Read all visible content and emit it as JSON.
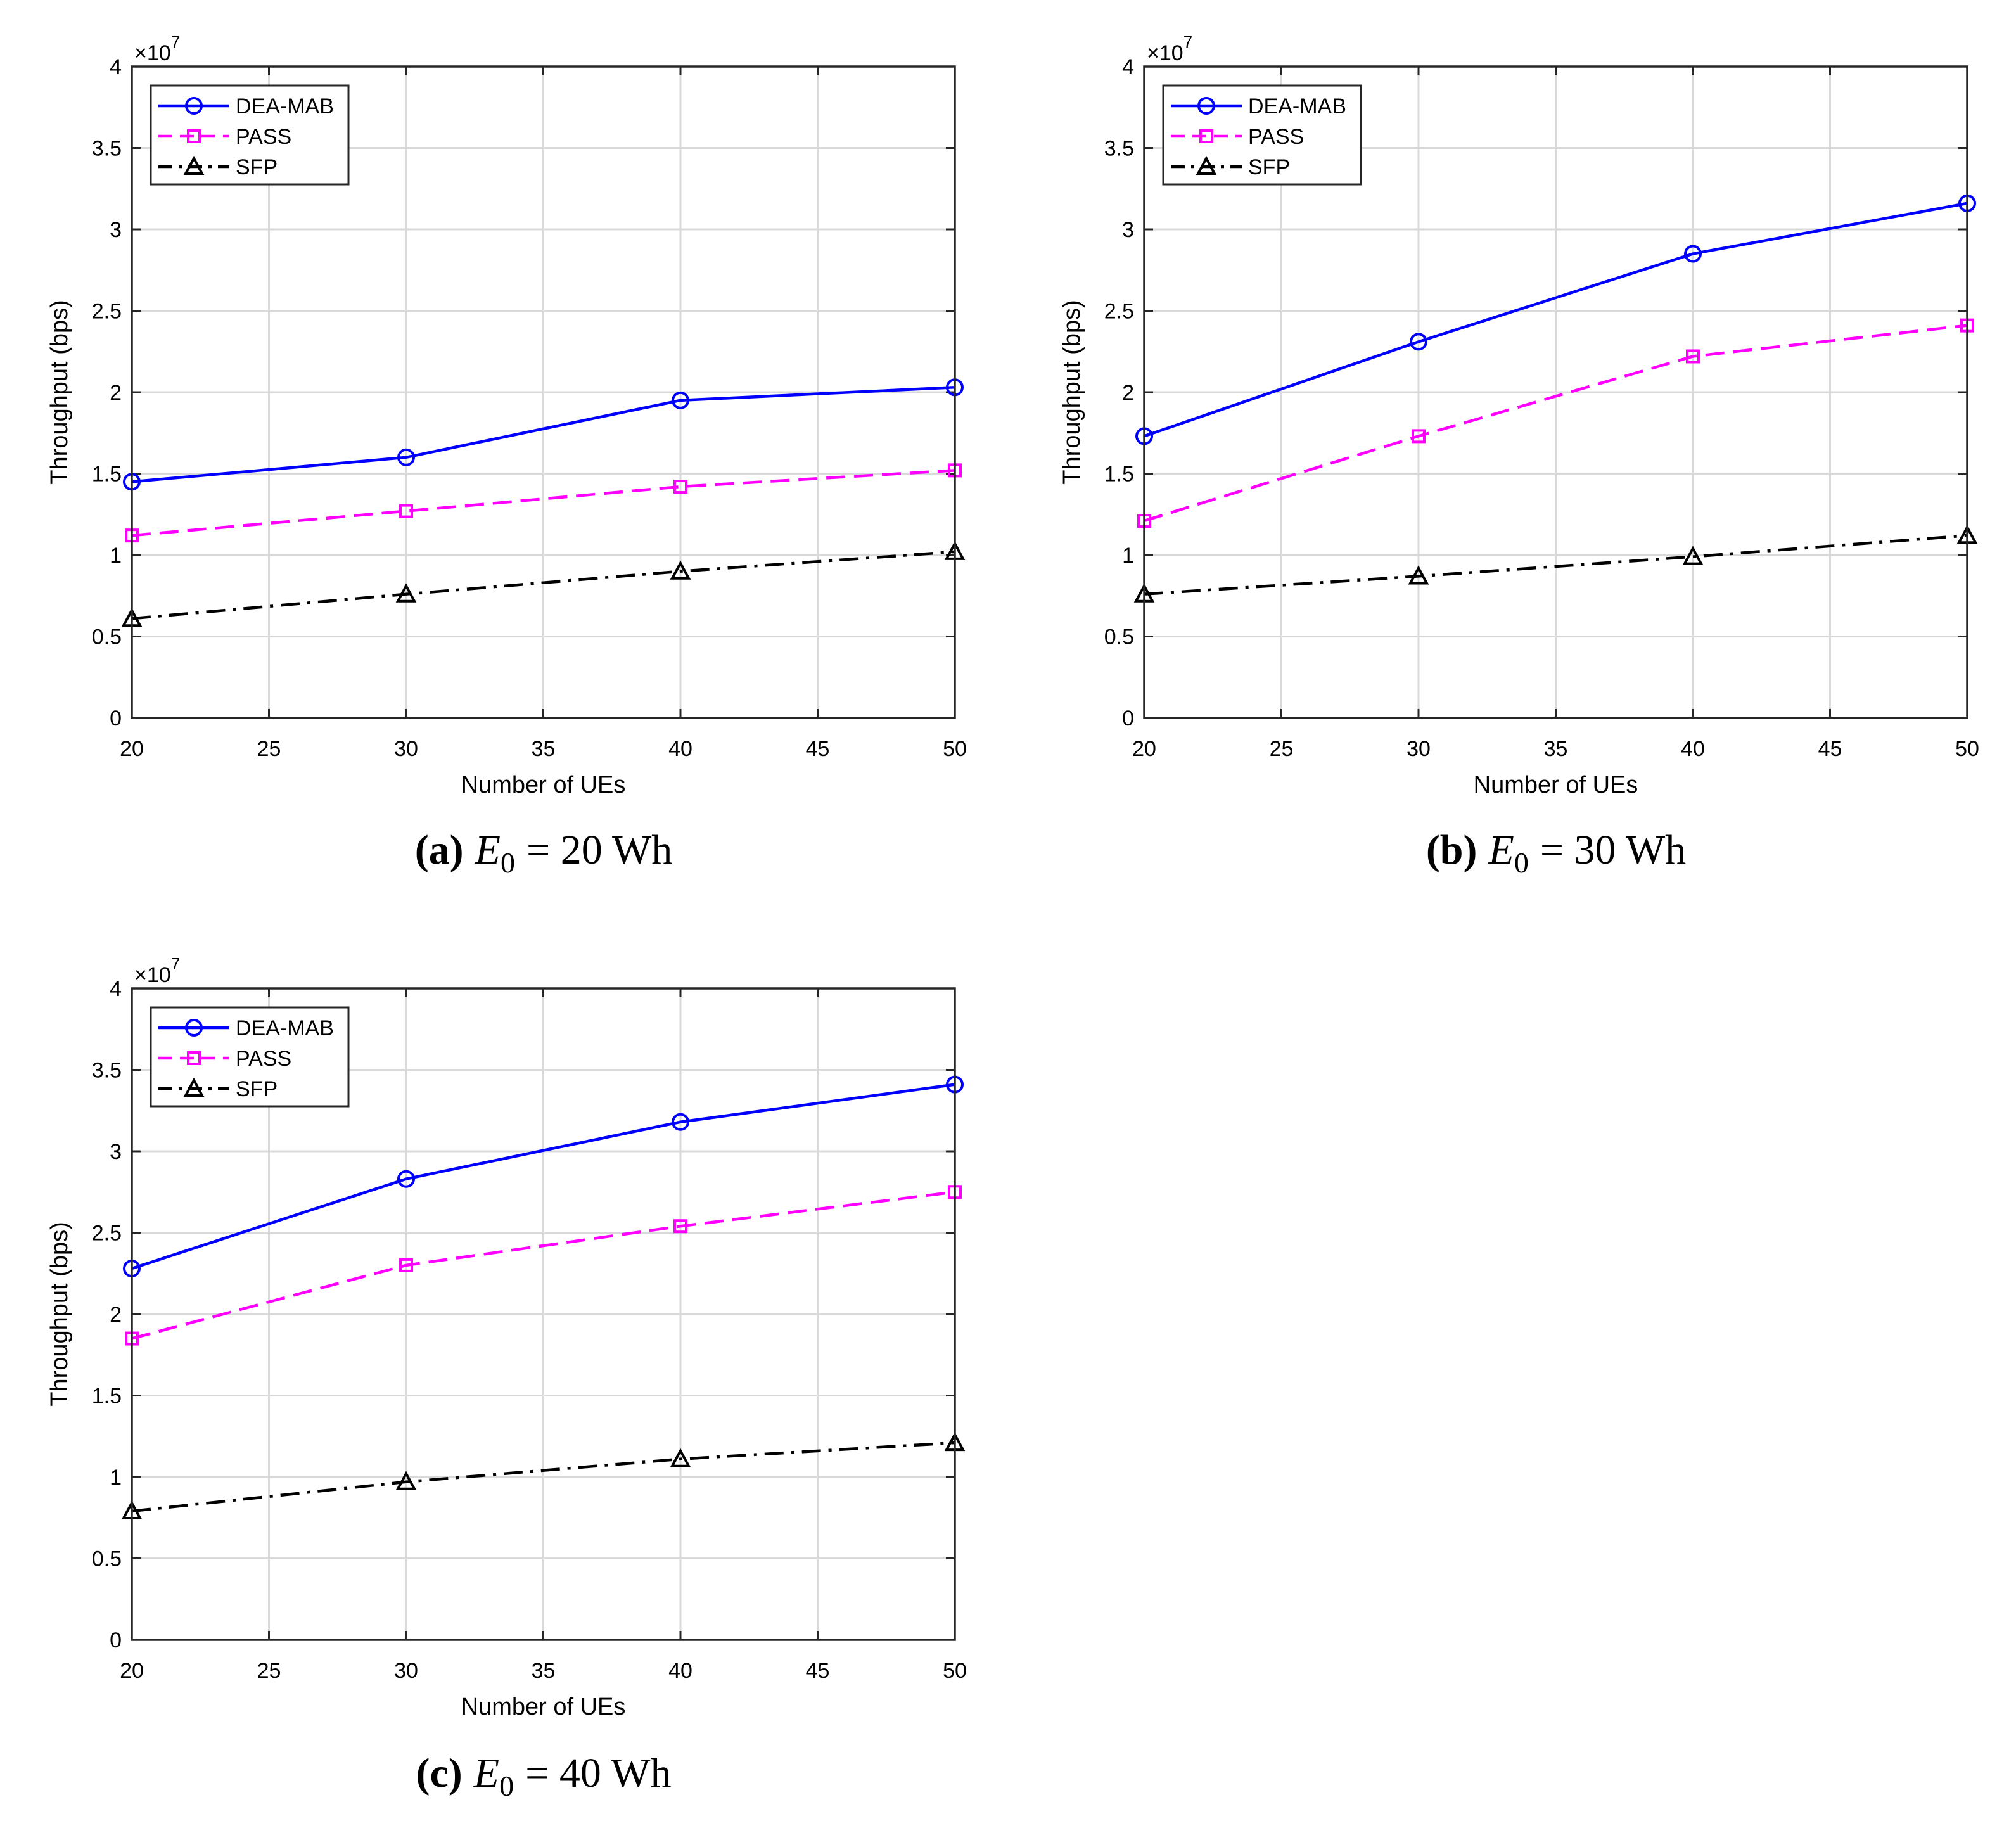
{
  "chart_data": [
    {
      "type": "line",
      "caption_label": "(a)",
      "caption_math": "E",
      "caption_sub": "0",
      "caption_value": "= 20 Wh",
      "xlabel": "Number of UEs",
      "ylabel": "Throughput (bps)",
      "xlim": [
        20,
        50
      ],
      "ylim": [
        0,
        4
      ],
      "xticks": [
        "20",
        "25",
        "30",
        "35",
        "40",
        "45",
        "50"
      ],
      "yticks": [
        "0",
        "0.5",
        "1",
        "1.5",
        "2",
        "2.5",
        "3",
        "3.5",
        "4"
      ],
      "exponent_base": "×10",
      "exponent_power": "7",
      "grid": true,
      "legend_position": "top-left",
      "x": [
        20,
        30,
        40,
        50
      ],
      "series": [
        {
          "name": "DEA-MAB",
          "values": [
            1.45,
            1.6,
            1.95,
            2.03
          ],
          "color": "#0000ff",
          "marker": "circle",
          "dash": "solid"
        },
        {
          "name": "PASS",
          "values": [
            1.12,
            1.27,
            1.42,
            1.52
          ],
          "color": "#ff00ff",
          "marker": "square",
          "dash": "dashed"
        },
        {
          "name": "SFP",
          "values": [
            0.61,
            0.76,
            0.9,
            1.02
          ],
          "color": "#000000",
          "marker": "triangle",
          "dash": "dashdot"
        }
      ]
    },
    {
      "type": "line",
      "caption_label": "(b)",
      "caption_math": "E",
      "caption_sub": "0",
      "caption_value": "= 30 Wh",
      "xlabel": "Number of UEs",
      "ylabel": "Throughput (bps)",
      "xlim": [
        20,
        50
      ],
      "ylim": [
        0,
        4
      ],
      "xticks": [
        "20",
        "25",
        "30",
        "35",
        "40",
        "45",
        "50"
      ],
      "yticks": [
        "0",
        "0.5",
        "1",
        "1.5",
        "2",
        "2.5",
        "3",
        "3.5",
        "4"
      ],
      "exponent_base": "×10",
      "exponent_power": "7",
      "grid": true,
      "legend_position": "top-left",
      "x": [
        20,
        30,
        40,
        50
      ],
      "series": [
        {
          "name": "DEA-MAB",
          "values": [
            1.73,
            2.31,
            2.85,
            3.16
          ],
          "color": "#0000ff",
          "marker": "circle",
          "dash": "solid"
        },
        {
          "name": "PASS",
          "values": [
            1.21,
            1.73,
            2.22,
            2.41
          ],
          "color": "#ff00ff",
          "marker": "square",
          "dash": "dashed"
        },
        {
          "name": "SFP",
          "values": [
            0.76,
            0.87,
            0.99,
            1.12
          ],
          "color": "#000000",
          "marker": "triangle",
          "dash": "dashdot"
        }
      ]
    },
    {
      "type": "line",
      "caption_label": "(c)",
      "caption_math": "E",
      "caption_sub": "0",
      "caption_value": "= 40 Wh",
      "xlabel": "Number of UEs",
      "ylabel": "Throughput (bps)",
      "xlim": [
        20,
        50
      ],
      "ylim": [
        0,
        4
      ],
      "xticks": [
        "20",
        "25",
        "30",
        "35",
        "40",
        "45",
        "50"
      ],
      "yticks": [
        "0",
        "0.5",
        "1",
        "1.5",
        "2",
        "2.5",
        "3",
        "3.5",
        "4"
      ],
      "exponent_base": "×10",
      "exponent_power": "7",
      "grid": true,
      "legend_position": "top-left",
      "x": [
        20,
        30,
        40,
        50
      ],
      "series": [
        {
          "name": "DEA-MAB",
          "values": [
            2.28,
            2.83,
            3.18,
            3.41
          ],
          "color": "#0000ff",
          "marker": "circle",
          "dash": "solid"
        },
        {
          "name": "PASS",
          "values": [
            1.85,
            2.3,
            2.54,
            2.75
          ],
          "color": "#ff00ff",
          "marker": "square",
          "dash": "dashed"
        },
        {
          "name": "SFP",
          "values": [
            0.79,
            0.97,
            1.11,
            1.21
          ],
          "color": "#000000",
          "marker": "triangle",
          "dash": "dashdot"
        }
      ]
    }
  ]
}
